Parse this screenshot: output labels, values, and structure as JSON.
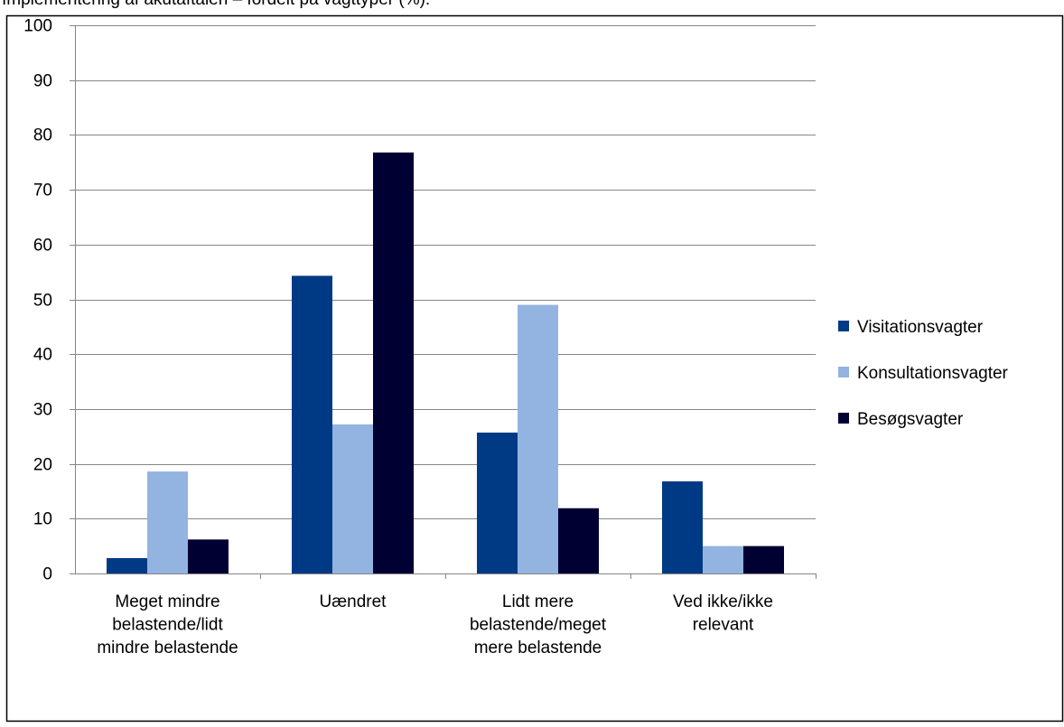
{
  "chart_data": {
    "type": "bar",
    "title": "Implementering af akutaftalen – fordelt på vagttyper (%).",
    "categories": [
      [
        "Meget mindre",
        "belastende/lidt",
        "mindre belastende"
      ],
      [
        "Uændret"
      ],
      [
        "Lidt mere",
        "belastende/meget",
        "mere belastende"
      ],
      [
        "Ved ikke/ikke",
        "relevant"
      ]
    ],
    "series": [
      {
        "name": "Visitationsvagter",
        "color": "#003a84",
        "values": [
          2.8,
          54.3,
          25.7,
          16.8
        ]
      },
      {
        "name": "Konsultationsvagter",
        "color": "#93b4e0",
        "values": [
          18.6,
          27.2,
          49.0,
          5.0
        ]
      },
      {
        "name": "Besøgsvagter",
        "color": "#000033",
        "values": [
          6.2,
          76.8,
          11.9,
          5.0
        ]
      }
    ],
    "ylim": [
      0,
      100
    ],
    "yticks": [
      0,
      10,
      20,
      30,
      40,
      50,
      60,
      70,
      80,
      90,
      100
    ],
    "grid": true,
    "legend_position": "right"
  }
}
